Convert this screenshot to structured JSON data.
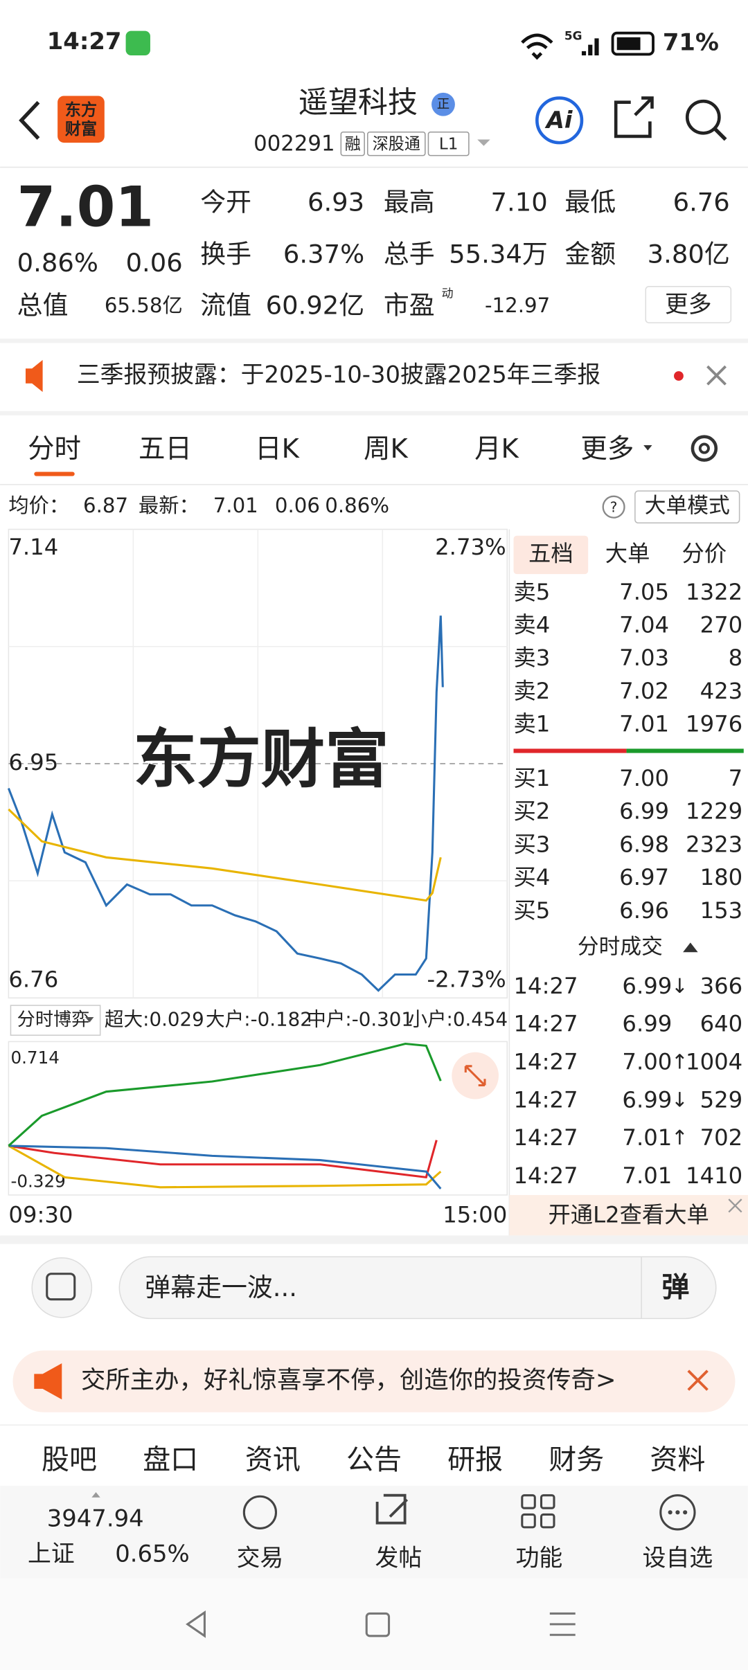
{
  "status": {
    "time": "14:27",
    "network": "5G",
    "battery": "71%"
  },
  "header": {
    "logo": [
      "东方",
      "财富"
    ],
    "title": "遥望科技",
    "badge": "正",
    "code": "002291",
    "tags": [
      "融",
      "深股通",
      "L1"
    ],
    "ai": "Ai"
  },
  "quote": {
    "price": "7.01",
    "change_pct": "0.86%",
    "change": "0.06",
    "fields": [
      {
        "label": "今开",
        "value": "6.93",
        "color": "#1a9a2b"
      },
      {
        "label": "最高",
        "value": "7.10",
        "color": "#e0262a"
      },
      {
        "label": "最低",
        "value": "6.76",
        "color": "#1a9a2b"
      },
      {
        "label": "换手",
        "value": "6.37%"
      },
      {
        "label": "总手",
        "value": "55.34万"
      },
      {
        "label": "金额",
        "value": "3.80亿"
      },
      {
        "label": "总值",
        "value": "65.58亿"
      },
      {
        "label": "流值",
        "value": "60.92亿"
      },
      {
        "label": "市盈",
        "value": "-12.97"
      }
    ],
    "pe_tag": "动",
    "more": "更多"
  },
  "notice": "三季报预披露：于2025-10-30披露2025年三季报",
  "tabs": [
    "分时",
    "五日",
    "日K",
    "周K",
    "月K",
    "更多"
  ],
  "info": {
    "avg_label": "均价：",
    "avg": "6.87",
    "last_label": "最新：",
    "last": "7.01",
    "change": "0.06",
    "change_pct": "0.86%",
    "mode": "大单模式"
  },
  "intraday": {
    "ylim": [
      6.76,
      7.14
    ],
    "xlim": [
      0,
      240
    ],
    "y_labels": [
      "7.14",
      "6.95",
      "6.76"
    ],
    "pct_labels": [
      "2.73%",
      "-2.73%"
    ],
    "x_labels": [
      "09:30",
      "15:00"
    ],
    "watermark": "东方财富",
    "series": [
      {
        "color": "#2a6fb5",
        "x": [
          0,
          6,
          14,
          21,
          27,
          37,
          47,
          57,
          68,
          78,
          88,
          98,
          109,
          119,
          129,
          139,
          150,
          160,
          170,
          178,
          186,
          196,
          201,
          204,
          206,
          208,
          209
        ],
        "values": [
          6.93,
          6.904,
          6.861,
          6.909,
          6.878,
          6.87,
          6.835,
          6.852,
          6.844,
          6.844,
          6.835,
          6.835,
          6.827,
          6.822,
          6.814,
          6.796,
          6.792,
          6.788,
          6.779,
          6.766,
          6.779,
          6.779,
          6.792,
          6.878,
          7.008,
          7.07,
          7.012
        ]
      },
      {
        "name": "均价",
        "color": "#e8b400",
        "x": [
          0,
          16,
          47,
          98,
          150,
          201,
          204,
          208
        ],
        "values": [
          6.913,
          6.887,
          6.874,
          6.865,
          6.852,
          6.839,
          6.845,
          6.874
        ]
      }
    ]
  },
  "flow": {
    "selector": "分时博弈",
    "ylim": [
      -0.329,
      0.714
    ],
    "yticks": [
      0.714,
      -0.329
    ],
    "xlim": [
      0,
      240
    ],
    "series": [
      {
        "label": "超大:0.029",
        "color": "#e0262a",
        "x": [
          0,
          22,
          73,
          150,
          201,
          206
        ],
        "values": [
          0,
          -0.05,
          -0.13,
          -0.13,
          -0.22,
          0.04
        ]
      },
      {
        "label": "大户:-0.182",
        "color": "#e8b400",
        "x": [
          0,
          27,
          73,
          150,
          201,
          208
        ],
        "values": [
          0,
          -0.22,
          -0.29,
          -0.28,
          -0.27,
          -0.18
        ]
      },
      {
        "label": "中户:-0.301",
        "color": "#2a6fb5",
        "x": [
          0,
          47,
          98,
          150,
          201,
          208
        ],
        "values": [
          0,
          -0.016,
          -0.07,
          -0.1,
          -0.18,
          -0.3
        ]
      },
      {
        "label": "小户:0.454",
        "color": "#1a9a2b",
        "x": [
          0,
          16,
          47,
          98,
          150,
          191,
          201,
          208
        ],
        "values": [
          0,
          0.21,
          0.379,
          0.45,
          0.565,
          0.714,
          0.7,
          0.454
        ]
      }
    ]
  },
  "orderbook": {
    "tabs": [
      "五档",
      "大单",
      "分价"
    ],
    "asks": [
      [
        "卖5",
        "7.05",
        "1322"
      ],
      [
        "卖4",
        "7.04",
        "270"
      ],
      [
        "卖3",
        "7.03",
        "8"
      ],
      [
        "卖2",
        "7.02",
        "423"
      ],
      [
        "卖1",
        "7.01",
        "1976"
      ]
    ],
    "bids": [
      [
        "买1",
        "7.00",
        "7"
      ],
      [
        "买2",
        "6.99",
        "1229"
      ],
      [
        "买3",
        "6.98",
        "2323"
      ],
      [
        "买4",
        "6.97",
        "180"
      ],
      [
        "买5",
        "6.96",
        "153"
      ]
    ]
  },
  "trades": {
    "title": "分时成交",
    "rows": [
      {
        "time": "14:27",
        "price": "6.99",
        "arrow": "↓",
        "volume": "366",
        "color": "#1a9a2b"
      },
      {
        "time": "14:27",
        "price": "6.99",
        "volume": "640",
        "color": "#1a9a2b"
      },
      {
        "time": "14:27",
        "price": "7.00",
        "arrow": "↑",
        "volume": "1004",
        "color": "#e0262a"
      },
      {
        "time": "14:27",
        "price": "6.99",
        "arrow": "↓",
        "volume": "529",
        "color": "#1a9a2b"
      },
      {
        "time": "14:27",
        "price": "7.01",
        "arrow": "↑",
        "volume": "702",
        "color": "#e0262a"
      },
      {
        "time": "14:27",
        "price": "7.01",
        "volume": "1410",
        "color": "#e0262a"
      }
    ]
  },
  "l2": "开通L2查看大单",
  "comment": {
    "placeholder": "弹幕走一波...",
    "button": "弹"
  },
  "ad": "交所主办，好礼惊喜享不停，创造你的投资传奇>",
  "bottom_tabs": [
    "股吧",
    "盘口",
    "资讯",
    "公告",
    "研报",
    "财务",
    "资料"
  ],
  "toolbar": {
    "index_value": "3947.94",
    "index_name": "上证",
    "index_pct": "0.65%",
    "items": [
      "交易",
      "发帖",
      "功能",
      "设自选"
    ]
  }
}
